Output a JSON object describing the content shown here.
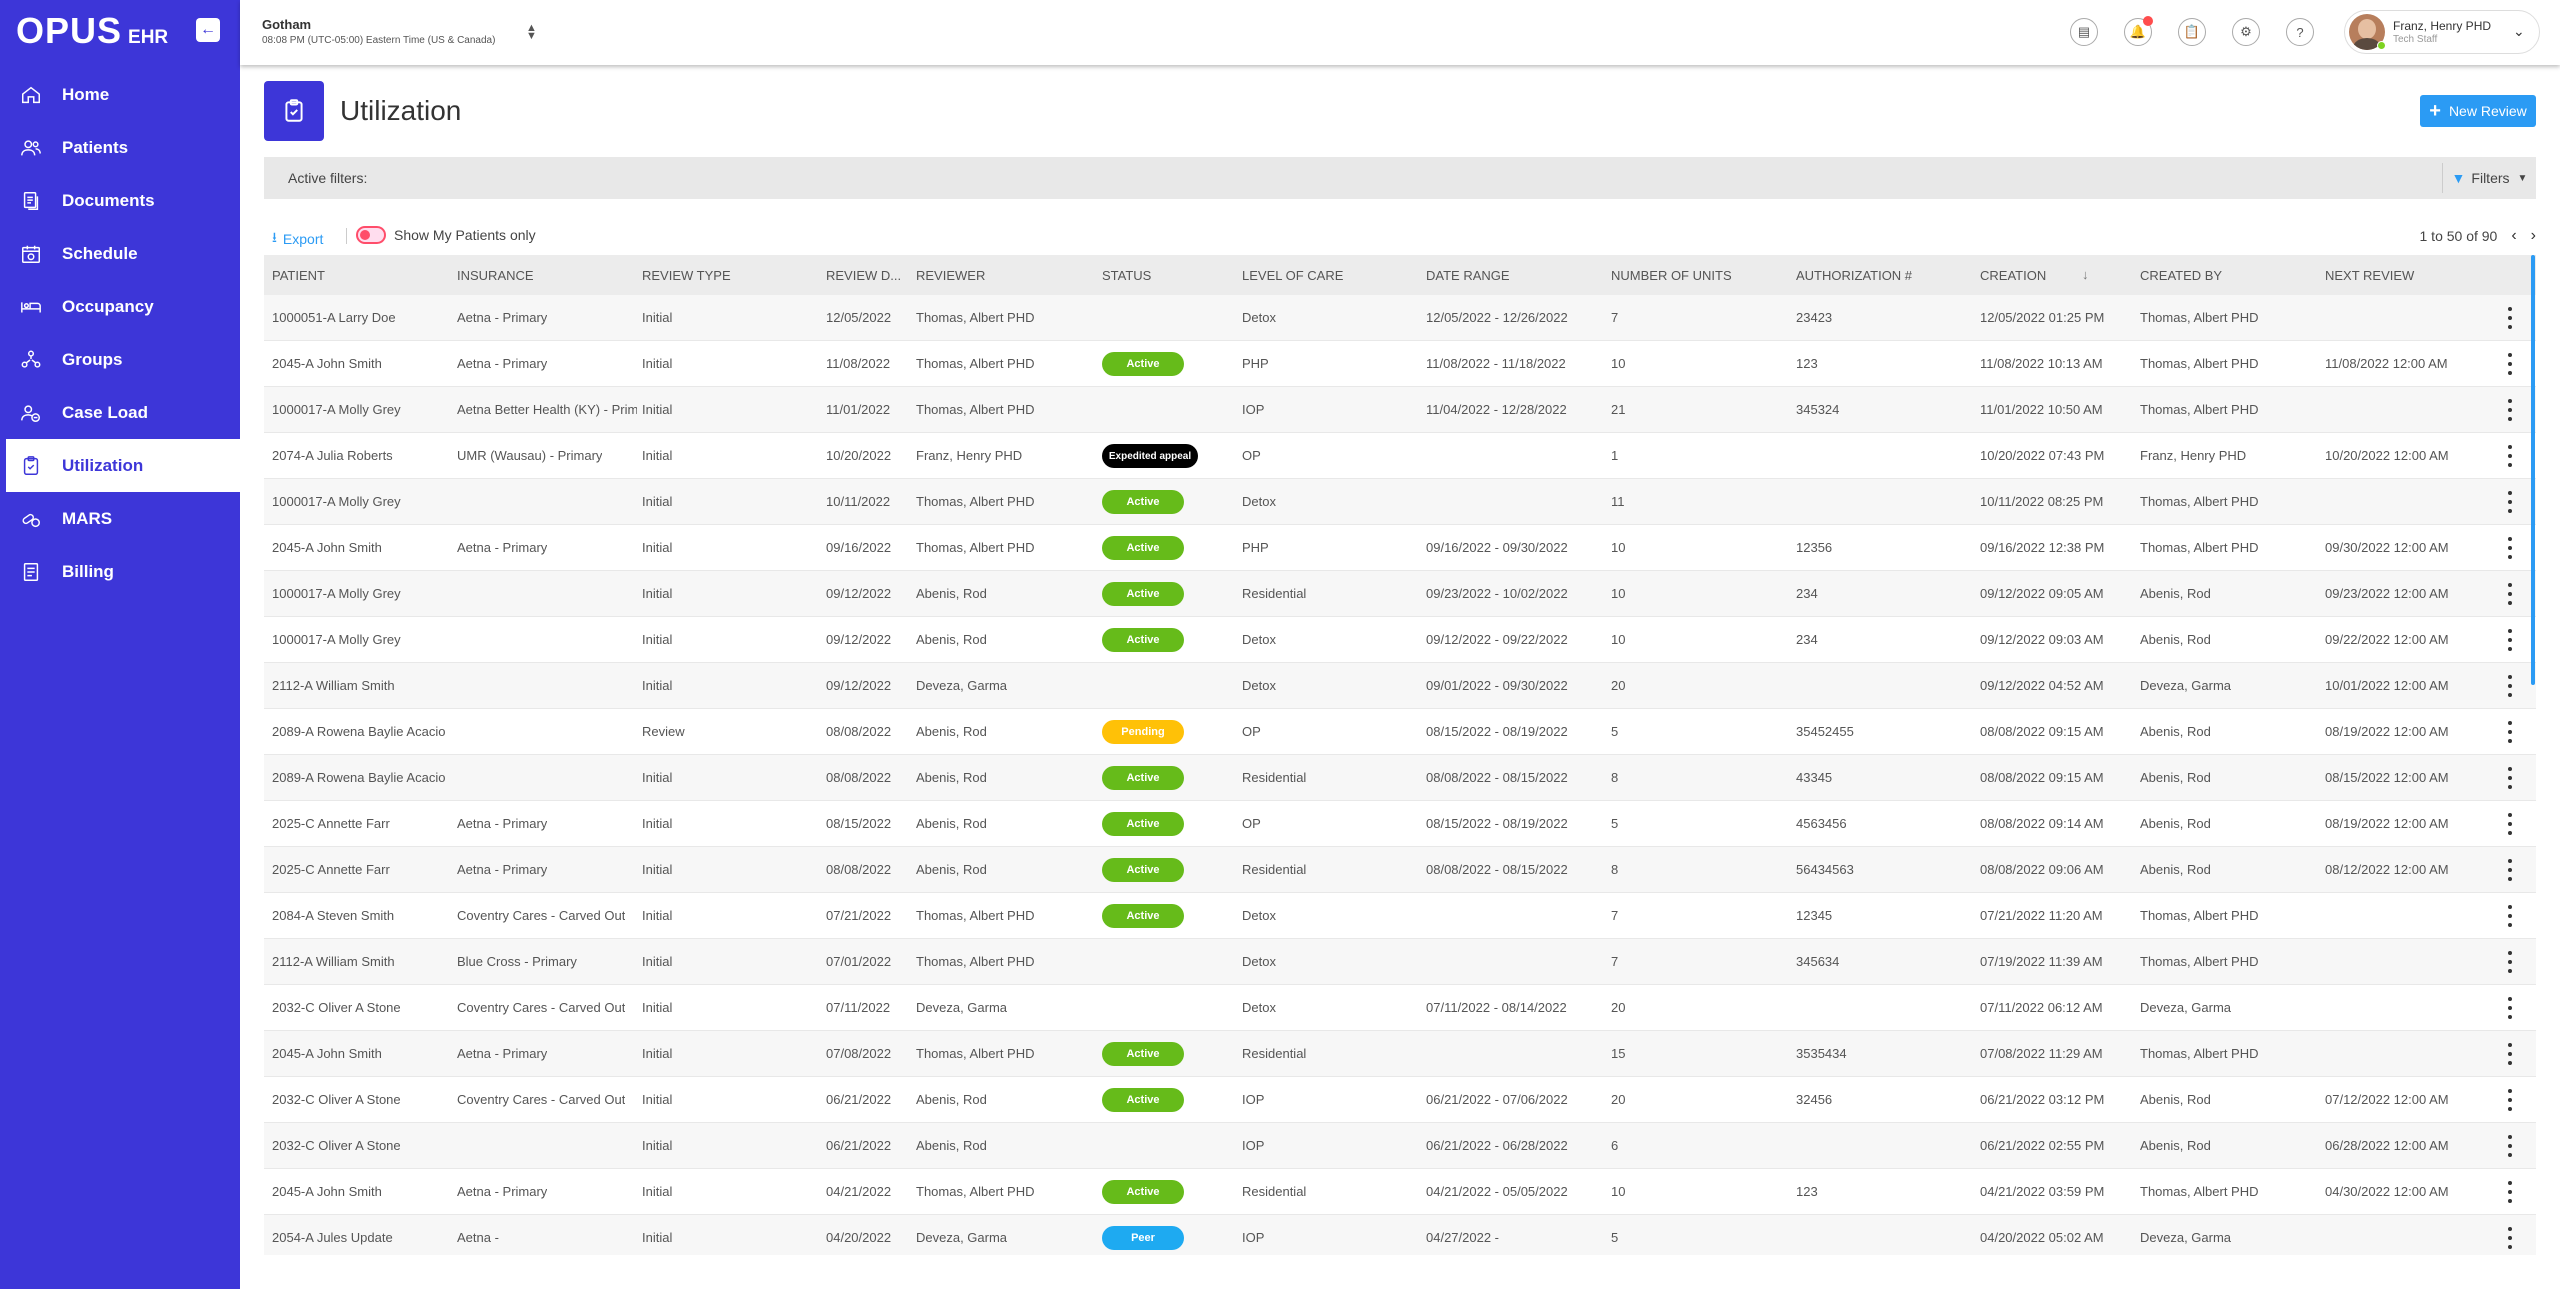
{
  "app": {
    "logo_main": "OPUS",
    "logo_sub": "EHR"
  },
  "sidebar": {
    "items": [
      {
        "label": "Home",
        "icon": "home-icon"
      },
      {
        "label": "Patients",
        "icon": "patients-icon"
      },
      {
        "label": "Documents",
        "icon": "documents-icon"
      },
      {
        "label": "Schedule",
        "icon": "schedule-icon"
      },
      {
        "label": "Occupancy",
        "icon": "bed-icon"
      },
      {
        "label": "Groups",
        "icon": "groups-icon"
      },
      {
        "label": "Case Load",
        "icon": "case-load-icon"
      },
      {
        "label": "Utilization",
        "icon": "clipboard-icon",
        "active": true
      },
      {
        "label": "MARS",
        "icon": "pills-icon"
      },
      {
        "label": "Billing",
        "icon": "billing-icon"
      }
    ]
  },
  "header": {
    "location": "Gotham",
    "time": "08:08 PM (UTC-05:00) Eastern Time (US & Canada)",
    "user_name": "Franz, Henry PHD",
    "user_role": "Tech Staff"
  },
  "page": {
    "title": "Utilization",
    "new_review_label": "New Review",
    "filters_label": "Active filters:",
    "filters_button": "Filters",
    "export_label": "Export",
    "toggle_label": "Show My Patients only",
    "pagination": "1 to 50 of 90"
  },
  "colors": {
    "sidebar": "#3d36d8",
    "accent": "#2b9bf4",
    "active": "#66bb1a",
    "pending": "#ffc107",
    "peer": "#1eaaf1",
    "expedited": "#000000"
  },
  "table": {
    "columns": [
      "PATIENT",
      "INSURANCE",
      "REVIEW TYPE",
      "REVIEW D...",
      "REVIEWER",
      "STATUS",
      "LEVEL OF CARE",
      "DATE RANGE",
      "NUMBER OF UNITS",
      "AUTHORIZATION #",
      "CREATION",
      "CREATED BY",
      "NEXT REVIEW"
    ],
    "rows": [
      {
        "patient": "1000051-A Larry Doe",
        "insurance": "Aetna - Primary",
        "review_type": "Initial",
        "review_date": "12/05/2022",
        "reviewer": "Thomas, Albert PHD",
        "status": "",
        "loc": "Detox",
        "date_range": "12/05/2022 - 12/26/2022",
        "units": "7",
        "auth": "23423",
        "creation": "12/05/2022 01:25 PM",
        "created_by": "Thomas, Albert PHD",
        "next_review": ""
      },
      {
        "patient": "2045-A John Smith",
        "insurance": "Aetna - Primary",
        "review_type": "Initial",
        "review_date": "11/08/2022",
        "reviewer": "Thomas, Albert PHD",
        "status": "Active",
        "loc": "PHP",
        "date_range": "11/08/2022 - 11/18/2022",
        "units": "10",
        "auth": "123",
        "creation": "11/08/2022 10:13 AM",
        "created_by": "Thomas, Albert PHD",
        "next_review": "11/08/2022 12:00 AM"
      },
      {
        "patient": "1000017-A Molly Grey",
        "insurance": "Aetna Better Health (KY) - Primary",
        "review_type": "Initial",
        "review_date": "11/01/2022",
        "reviewer": "Thomas, Albert PHD",
        "status": "",
        "loc": "IOP",
        "date_range": "11/04/2022 - 12/28/2022",
        "units": "21",
        "auth": "345324",
        "creation": "11/01/2022 10:50 AM",
        "created_by": "Thomas, Albert PHD",
        "next_review": ""
      },
      {
        "patient": "2074-A Julia Roberts",
        "insurance": "UMR (Wausau) - Primary",
        "review_type": "Initial",
        "review_date": "10/20/2022",
        "reviewer": "Franz, Henry PHD",
        "status": "Expedited appeal",
        "loc": "OP",
        "date_range": "",
        "units": "1",
        "auth": "",
        "creation": "10/20/2022 07:43 PM",
        "created_by": "Franz, Henry PHD",
        "next_review": "10/20/2022 12:00 AM"
      },
      {
        "patient": "1000017-A Molly Grey",
        "insurance": "",
        "review_type": "Initial",
        "review_date": "10/11/2022",
        "reviewer": "Thomas, Albert PHD",
        "status": "Active",
        "loc": "Detox",
        "date_range": "",
        "units": "11",
        "auth": "",
        "creation": "10/11/2022 08:25 PM",
        "created_by": "Thomas, Albert PHD",
        "next_review": ""
      },
      {
        "patient": "2045-A John Smith",
        "insurance": "Aetna - Primary",
        "review_type": "Initial",
        "review_date": "09/16/2022",
        "reviewer": "Thomas, Albert PHD",
        "status": "Active",
        "loc": "PHP",
        "date_range": "09/16/2022 - 09/30/2022",
        "units": "10",
        "auth": "12356",
        "creation": "09/16/2022 12:38 PM",
        "created_by": "Thomas, Albert PHD",
        "next_review": "09/30/2022 12:00 AM"
      },
      {
        "patient": "1000017-A Molly Grey",
        "insurance": "",
        "review_type": "Initial",
        "review_date": "09/12/2022",
        "reviewer": "Abenis, Rod",
        "status": "Active",
        "loc": "Residential",
        "date_range": "09/23/2022 - 10/02/2022",
        "units": "10",
        "auth": "234",
        "creation": "09/12/2022 09:05 AM",
        "created_by": "Abenis, Rod",
        "next_review": "09/23/2022 12:00 AM"
      },
      {
        "patient": "1000017-A Molly Grey",
        "insurance": "",
        "review_type": "Initial",
        "review_date": "09/12/2022",
        "reviewer": "Abenis, Rod",
        "status": "Active",
        "loc": "Detox",
        "date_range": "09/12/2022 - 09/22/2022",
        "units": "10",
        "auth": "234",
        "creation": "09/12/2022 09:03 AM",
        "created_by": "Abenis, Rod",
        "next_review": "09/22/2022 12:00 AM"
      },
      {
        "patient": "2112-A William Smith",
        "insurance": "",
        "review_type": "Initial",
        "review_date": "09/12/2022",
        "reviewer": "Deveza, Garma",
        "status": "",
        "loc": "Detox",
        "date_range": "09/01/2022 - 09/30/2022",
        "units": "20",
        "auth": "",
        "creation": "09/12/2022 04:52 AM",
        "created_by": "Deveza, Garma",
        "next_review": "10/01/2022 12:00 AM"
      },
      {
        "patient": "2089-A Rowena Baylie Acacio",
        "insurance": "",
        "review_type": "Review",
        "review_date": "08/08/2022",
        "reviewer": "Abenis, Rod",
        "status": "Pending",
        "loc": "OP",
        "date_range": "08/15/2022 - 08/19/2022",
        "units": "5",
        "auth": "35452455",
        "creation": "08/08/2022 09:15 AM",
        "created_by": "Abenis, Rod",
        "next_review": "08/19/2022 12:00 AM"
      },
      {
        "patient": "2089-A Rowena Baylie Acacio",
        "insurance": "",
        "review_type": "Initial",
        "review_date": "08/08/2022",
        "reviewer": "Abenis, Rod",
        "status": "Active",
        "loc": "Residential",
        "date_range": "08/08/2022 - 08/15/2022",
        "units": "8",
        "auth": "43345",
        "creation": "08/08/2022 09:15 AM",
        "created_by": "Abenis, Rod",
        "next_review": "08/15/2022 12:00 AM"
      },
      {
        "patient": "2025-C Annette Farr",
        "insurance": "Aetna - Primary",
        "review_type": "Initial",
        "review_date": "08/15/2022",
        "reviewer": "Abenis, Rod",
        "status": "Active",
        "loc": "OP",
        "date_range": "08/15/2022 - 08/19/2022",
        "units": "5",
        "auth": "4563456",
        "creation": "08/08/2022 09:14 AM",
        "created_by": "Abenis, Rod",
        "next_review": "08/19/2022 12:00 AM"
      },
      {
        "patient": "2025-C Annette Farr",
        "insurance": "Aetna - Primary",
        "review_type": "Initial",
        "review_date": "08/08/2022",
        "reviewer": "Abenis, Rod",
        "status": "Active",
        "loc": "Residential",
        "date_range": "08/08/2022 - 08/15/2022",
        "units": "8",
        "auth": "56434563",
        "creation": "08/08/2022 09:06 AM",
        "created_by": "Abenis, Rod",
        "next_review": "08/12/2022 12:00 AM"
      },
      {
        "patient": "2084-A Steven Smith",
        "insurance": "Coventry Cares - Carved Out",
        "review_type": "Initial",
        "review_date": "07/21/2022",
        "reviewer": "Thomas, Albert PHD",
        "status": "Active",
        "loc": "Detox",
        "date_range": "",
        "units": "7",
        "auth": "12345",
        "creation": "07/21/2022 11:20 AM",
        "created_by": "Thomas, Albert PHD",
        "next_review": ""
      },
      {
        "patient": "2112-A William Smith",
        "insurance": "Blue Cross - Primary",
        "review_type": "Initial",
        "review_date": "07/01/2022",
        "reviewer": "Thomas, Albert PHD",
        "status": "",
        "loc": "Detox",
        "date_range": "",
        "units": "7",
        "auth": "345634",
        "creation": "07/19/2022 11:39 AM",
        "created_by": "Thomas, Albert PHD",
        "next_review": ""
      },
      {
        "patient": "2032-C Oliver A Stone",
        "insurance": "Coventry Cares - Carved Out",
        "review_type": "Initial",
        "review_date": "07/11/2022",
        "reviewer": "Deveza, Garma",
        "status": "",
        "loc": "Detox",
        "date_range": "07/11/2022 - 08/14/2022",
        "units": "20",
        "auth": "",
        "creation": "07/11/2022 06:12 AM",
        "created_by": "Deveza, Garma",
        "next_review": ""
      },
      {
        "patient": "2045-A John Smith",
        "insurance": "Aetna - Primary",
        "review_type": "Initial",
        "review_date": "07/08/2022",
        "reviewer": "Thomas, Albert PHD",
        "status": "Active",
        "loc": "Residential",
        "date_range": "",
        "units": "15",
        "auth": "3535434",
        "creation": "07/08/2022 11:29 AM",
        "created_by": "Thomas, Albert PHD",
        "next_review": ""
      },
      {
        "patient": "2032-C Oliver A Stone",
        "insurance": "Coventry Cares - Carved Out",
        "review_type": "Initial",
        "review_date": "06/21/2022",
        "reviewer": "Abenis, Rod",
        "status": "Active",
        "loc": "IOP",
        "date_range": "06/21/2022 - 07/06/2022",
        "units": "20",
        "auth": "32456",
        "creation": "06/21/2022 03:12 PM",
        "created_by": "Abenis, Rod",
        "next_review": "07/12/2022 12:00 AM"
      },
      {
        "patient": "2032-C Oliver A Stone",
        "insurance": "",
        "review_type": "Initial",
        "review_date": "06/21/2022",
        "reviewer": "Abenis, Rod",
        "status": "",
        "loc": "IOP",
        "date_range": "06/21/2022 - 06/28/2022",
        "units": "6",
        "auth": "",
        "creation": "06/21/2022 02:55 PM",
        "created_by": "Abenis, Rod",
        "next_review": "06/28/2022 12:00 AM"
      },
      {
        "patient": "2045-A John Smith",
        "insurance": "Aetna - Primary",
        "review_type": "Initial",
        "review_date": "04/21/2022",
        "reviewer": "Thomas, Albert PHD",
        "status": "Active",
        "loc": "Residential",
        "date_range": "04/21/2022 - 05/05/2022",
        "units": "10",
        "auth": "123",
        "creation": "04/21/2022 03:59 PM",
        "created_by": "Thomas, Albert PHD",
        "next_review": "04/30/2022 12:00 AM"
      },
      {
        "patient": "2054-A Jules Update",
        "insurance": "Aetna -",
        "review_type": "Initial",
        "review_date": "04/20/2022",
        "reviewer": "Deveza, Garma",
        "status": "Peer",
        "loc": "IOP",
        "date_range": "04/27/2022 -",
        "units": "5",
        "auth": "",
        "creation": "04/20/2022 05:02 AM",
        "created_by": "Deveza, Garma",
        "next_review": ""
      }
    ]
  }
}
